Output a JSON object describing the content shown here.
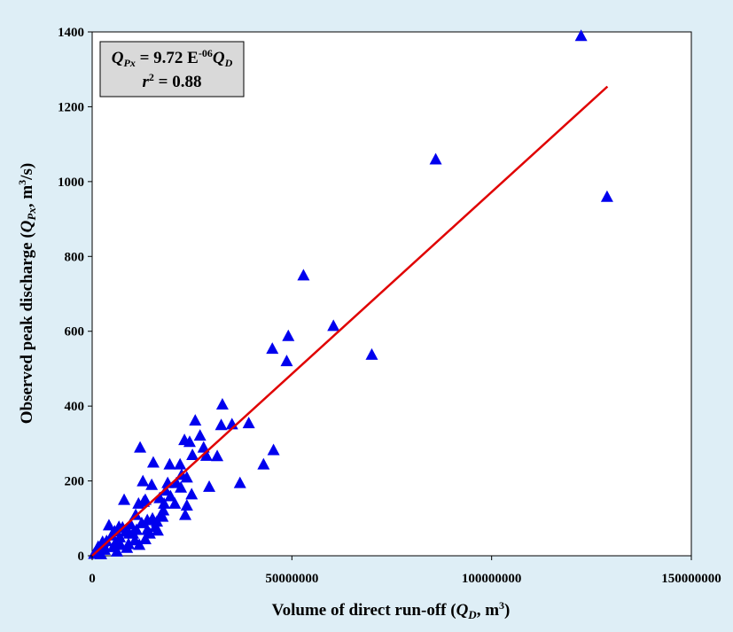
{
  "chart_data": {
    "type": "scatter",
    "x_label": [
      "Volume of direct run-off (",
      "Q",
      "D",
      ", m",
      "3",
      ")"
    ],
    "y_label": [
      "Observed peak discharge (",
      "Q",
      "Px",
      ", m",
      "3",
      "/s)"
    ],
    "annotation": [
      [
        "Q",
        "Px",
        " = 9.72 E",
        "-06",
        "Q",
        "D"
      ],
      [
        "r",
        "2",
        " = 0.88"
      ]
    ],
    "color": "#0000ee",
    "marker": "triangle",
    "x": [
      122400000,
      128900000,
      86000000,
      52900000,
      60400000,
      70000000,
      49100000,
      48700000,
      45100000,
      45400000,
      42900000,
      39200000,
      35000000,
      32600000,
      32300000,
      31300000,
      29300000,
      37000000,
      25800000,
      27000000,
      27900000,
      28600000,
      25100000,
      23100000,
      24400000,
      22000000,
      22200000,
      23700000,
      24900000,
      23300000,
      23700000,
      22400000,
      18900000,
      19400000,
      18000000,
      17300000,
      16900000,
      16200000,
      15800000,
      15300000,
      14900000,
      12000000,
      12700000,
      12900000,
      13300000,
      11600000,
      10900000,
      12400000,
      13800000,
      13800000,
      13300000,
      11100000,
      10200000,
      9300000,
      8400000,
      8000000,
      7600000,
      6900000,
      6700000,
      5600000,
      5800000,
      4200000,
      3600000,
      2900000,
      2000000,
      1300000,
      500000,
      9600000,
      10700000,
      9100000,
      4900000,
      3100000,
      5300000,
      7100000,
      1500000,
      2600000,
      17800000,
      16400000,
      18400000,
      19600000,
      20700000,
      21100000,
      17600000,
      15100000,
      14400000,
      11800000,
      8700000,
      6200000,
      2200000
    ],
    "values": [
      1390,
      960,
      1060,
      750,
      615,
      538,
      588,
      521,
      554,
      283,
      245,
      355,
      352,
      405,
      350,
      267,
      185,
      195,
      362,
      322,
      290,
      268,
      270,
      310,
      305,
      245,
      183,
      210,
      165,
      110,
      135,
      217,
      195,
      245,
      140,
      110,
      155,
      92,
      78,
      250,
      190,
      290,
      200,
      145,
      150,
      140,
      110,
      88,
      96,
      70,
      45,
      70,
      60,
      60,
      65,
      150,
      76,
      50,
      78,
      66,
      35,
      82,
      40,
      28,
      20,
      12,
      6,
      85,
      42,
      32,
      55,
      17,
      24,
      30,
      25,
      38,
      122,
      68,
      175,
      160,
      140,
      195,
      105,
      100,
      60,
      30,
      22,
      12,
      5
    ],
    "fit": {
      "color": "#e00000",
      "x": [
        0,
        129000000
      ],
      "values": [
        0,
        1254
      ]
    },
    "xlim": [
      0,
      150000000
    ],
    "xticks": [
      0,
      50000000,
      100000000,
      150000000
    ],
    "ylim": [
      0,
      1400
    ],
    "yticks": [
      0,
      200,
      400,
      600,
      800,
      1000,
      1200,
      1400
    ]
  }
}
